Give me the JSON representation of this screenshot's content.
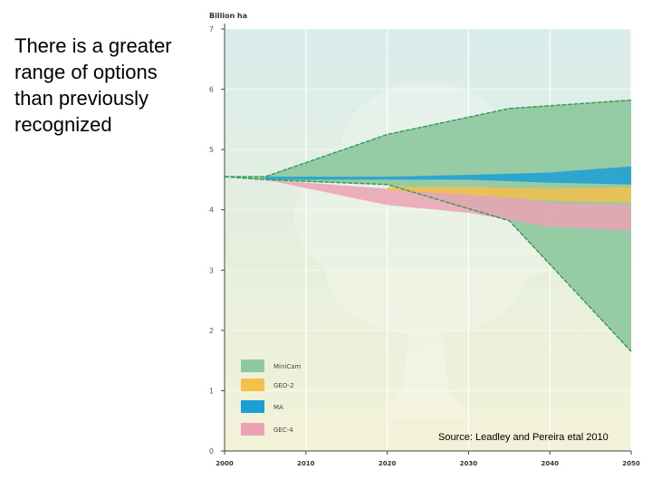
{
  "slide": {
    "text_lines": [
      "There is a greater",
      "range of options",
      "than previously",
      "recognized"
    ]
  },
  "chart_data": {
    "type": "area",
    "unit_label": "Billion ha",
    "ylim": [
      0,
      7
    ],
    "xlim": [
      2000,
      2050
    ],
    "y_ticks": [
      0,
      1,
      2,
      3,
      4,
      5,
      6,
      7
    ],
    "x_ticks": [
      {
        "value": 2000,
        "label": "2000"
      },
      {
        "value": 2010,
        "label": "2010"
      },
      {
        "value": 2020,
        "label": "2020"
      },
      {
        "value": 2030,
        "label": "2030"
      },
      {
        "value": 2040,
        "label": "2040"
      },
      {
        "value": 2050,
        "label": "2050"
      }
    ],
    "grid": true,
    "legend_placement": "bottom-left",
    "series": [
      {
        "name": "MiniCam",
        "color": "#8ec89e",
        "upper": [
          [
            2000,
            4.55
          ],
          [
            2005,
            4.55
          ],
          [
            2020,
            5.25
          ],
          [
            2035,
            5.68
          ],
          [
            2050,
            5.82
          ]
        ],
        "lower": [
          [
            2000,
            4.55
          ],
          [
            2005,
            4.5
          ],
          [
            2020,
            4.42
          ],
          [
            2035,
            3.82
          ],
          [
            2050,
            1.65
          ]
        ]
      },
      {
        "name": "GEO-2",
        "color": "#f5c04a",
        "upper": [
          [
            2020,
            4.38
          ],
          [
            2030,
            4.38
          ],
          [
            2040,
            4.35
          ],
          [
            2050,
            4.38
          ]
        ],
        "lower": [
          [
            2020,
            4.33
          ],
          [
            2030,
            4.25
          ],
          [
            2040,
            4.15
          ],
          [
            2050,
            4.12
          ]
        ]
      },
      {
        "name": "MA",
        "color": "#1aa0d6",
        "upper": [
          [
            2005,
            4.55
          ],
          [
            2020,
            4.55
          ],
          [
            2030,
            4.58
          ],
          [
            2040,
            4.62
          ],
          [
            2050,
            4.72
          ]
        ],
        "lower": [
          [
            2005,
            4.5
          ],
          [
            2020,
            4.5
          ],
          [
            2030,
            4.5
          ],
          [
            2040,
            4.45
          ],
          [
            2050,
            4.42
          ]
        ]
      },
      {
        "name": "GEC-4",
        "color": "#eba3b3",
        "upper": [
          [
            2005,
            4.5
          ],
          [
            2020,
            4.35
          ],
          [
            2030,
            4.3
          ],
          [
            2040,
            4.12
          ],
          [
            2050,
            4.08
          ]
        ],
        "lower": [
          [
            2005,
            4.5
          ],
          [
            2020,
            4.08
          ],
          [
            2030,
            3.95
          ],
          [
            2040,
            3.72
          ],
          [
            2050,
            3.65
          ]
        ]
      }
    ],
    "source_note": "Source: Leadley and Pereira etal 2010"
  }
}
